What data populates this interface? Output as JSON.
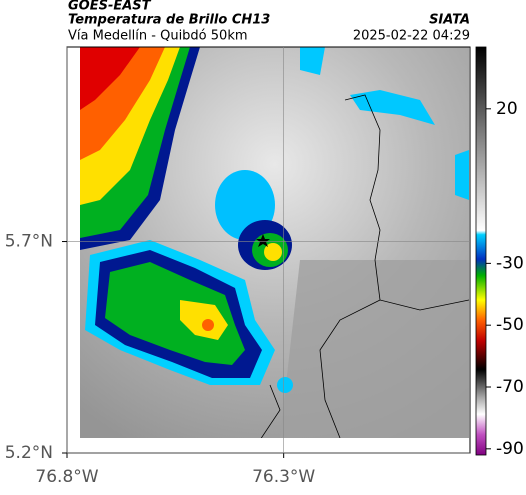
{
  "header": {
    "title": "GOES-EAST",
    "subtitle": "Temperatura de Brillo CH13",
    "route": "Vía Medellín - Quibdó 50km",
    "source": "SIATA",
    "timestamp": "2025-02-22 04:29"
  },
  "map": {
    "xlim": [
      -76.8,
      -75.87
    ],
    "ylim": [
      5.2,
      6.16
    ],
    "xticks": [
      {
        "value": -76.8,
        "label": "76.8°W"
      },
      {
        "value": -76.3,
        "label": "76.3°W"
      }
    ],
    "yticks": [
      {
        "value": 5.2,
        "label": "5.2°N"
      },
      {
        "value": 5.7,
        "label": "5.7°N"
      }
    ]
  },
  "colorbar": {
    "lim": [
      -92,
      40
    ],
    "ticks": [
      20,
      -30,
      -50,
      -70,
      -90
    ]
  }
}
